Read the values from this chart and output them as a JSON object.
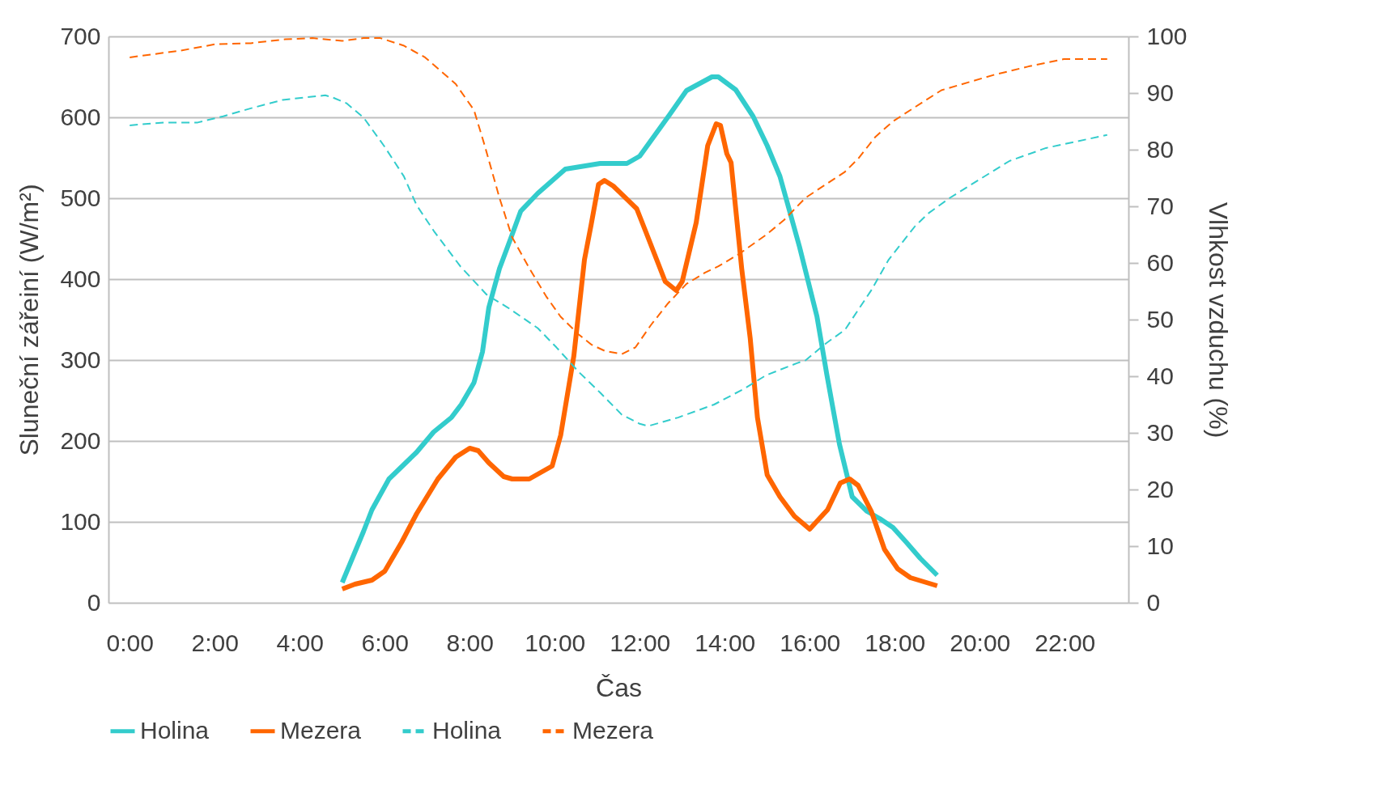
{
  "chart_data": {
    "type": "line",
    "xlabel": "Čas",
    "ylabel": "Sluneční zářeiní (W/m²)",
    "y2label": "Vlhkost vzduchu (%)",
    "xlim": [
      -0.5,
      23.5
    ],
    "xticks": [
      {
        "value": 0,
        "label": "0:00"
      },
      {
        "value": 2,
        "label": "2:00"
      },
      {
        "value": 4,
        "label": "4:00"
      },
      {
        "value": 6,
        "label": "6:00"
      },
      {
        "value": 8,
        "label": "8:00"
      },
      {
        "value": 10,
        "label": "10:00"
      },
      {
        "value": 12,
        "label": "12:00"
      },
      {
        "value": 14,
        "label": "14:00"
      },
      {
        "value": 16,
        "label": "16:00"
      },
      {
        "value": 18,
        "label": "18:00"
      },
      {
        "value": 20,
        "label": "20:00"
      },
      {
        "value": 22,
        "label": "22:00"
      }
    ],
    "ylim": [
      0,
      700
    ],
    "yticks": [
      0,
      100,
      200,
      300,
      400,
      500,
      600,
      700
    ],
    "y2lim": [
      0,
      100
    ],
    "y2ticks": [
      0,
      10,
      20,
      30,
      40,
      50,
      60,
      70,
      80,
      90,
      100
    ],
    "grid": "y",
    "legend": "bottom",
    "marker": "none",
    "series": [
      {
        "name": "Holina",
        "color": "#33cccc",
        "line_style": "solid",
        "axis": "y",
        "x": [
          5.0,
          5.5,
          5.7,
          6.1,
          6.75,
          7.15,
          7.57,
          7.8,
          8.1,
          8.3,
          8.45,
          8.7,
          8.97,
          9.2,
          9.6,
          10.25,
          11.07,
          11.7,
          12.0,
          12.7,
          13.1,
          13.7,
          13.85,
          14.26,
          14.67,
          15.0,
          15.3,
          15.76,
          16.17,
          16.4,
          16.7,
          17.0,
          17.35,
          17.65,
          17.96,
          18.27,
          18.6,
          19.0
        ],
        "values": [
          25,
          88,
          115,
          153,
          186,
          211,
          229,
          245,
          272,
          310,
          365,
          413,
          451,
          484,
          506,
          536,
          543,
          543,
          552,
          603,
          633,
          650,
          650,
          634,
          601,
          565,
          527,
          440,
          354,
          283,
          196,
          131,
          113,
          104,
          93,
          75,
          55,
          34
        ]
      },
      {
        "name": "Mezera",
        "color": "#ff6600",
        "line_style": "solid",
        "axis": "y",
        "x": [
          5.0,
          5.3,
          5.7,
          6.0,
          6.4,
          6.75,
          7.25,
          7.67,
          8.0,
          8.2,
          8.45,
          8.8,
          9.0,
          9.4,
          9.94,
          10.14,
          10.45,
          10.7,
          10.86,
          11.03,
          11.17,
          11.38,
          11.93,
          12.14,
          12.4,
          12.6,
          12.86,
          13.0,
          13.33,
          13.6,
          13.8,
          13.9,
          14.05,
          14.15,
          14.4,
          14.6,
          14.77,
          15.0,
          15.3,
          15.64,
          16.0,
          16.42,
          16.72,
          16.94,
          17.14,
          17.45,
          17.76,
          18.07,
          18.37,
          19.0
        ],
        "values": [
          17,
          23,
          28,
          39,
          75,
          110,
          153,
          180,
          191,
          188,
          173,
          156,
          153,
          153,
          169,
          207,
          305,
          424,
          468,
          517,
          522,
          515,
          487,
          459,
          424,
          397,
          386,
          397,
          470,
          565,
          592,
          590,
          555,
          544,
          413,
          327,
          229,
          158,
          131,
          107,
          91,
          115,
          148,
          153,
          145,
          113,
          66,
          42,
          31,
          21
        ]
      },
      {
        "name": "Holina",
        "color": "#33cccc",
        "line_style": "dashed",
        "axis": "y2",
        "x": [
          0.0,
          0.8,
          1.6,
          2.2,
          2.85,
          3.6,
          4.6,
          4.75,
          5.1,
          5.5,
          6.0,
          6.45,
          6.75,
          7.16,
          7.78,
          8.4,
          8.9,
          9.6,
          10.04,
          10.56,
          11.07,
          11.58,
          12.0,
          12.2,
          12.9,
          13.75,
          14.46,
          14.98,
          15.7,
          15.9,
          16.4,
          16.83,
          17.45,
          17.86,
          18.48,
          18.8,
          19.3,
          19.9,
          20.7,
          21.56,
          23.0
        ],
        "values": [
          84.3,
          84.8,
          84.8,
          85.9,
          87.3,
          88.8,
          89.6,
          89.3,
          88.2,
          85.7,
          80.5,
          75.3,
          70.2,
          65.6,
          59.4,
          54.4,
          52.1,
          48.5,
          45.1,
          40.8,
          37.1,
          33.2,
          31.6,
          31.2,
          32.7,
          35.0,
          37.8,
          40.2,
          42.3,
          42.8,
          45.9,
          48.2,
          55.2,
          60.6,
          66.5,
          68.8,
          71.5,
          74.3,
          78.0,
          80.3,
          82.6
        ]
      },
      {
        "name": "Mezera",
        "color": "#ff6600",
        "line_style": "dashed",
        "axis": "y2",
        "x": [
          0.0,
          1.2,
          2.0,
          2.85,
          3.66,
          4.3,
          5.0,
          5.5,
          5.9,
          6.44,
          6.95,
          7.67,
          8.1,
          8.35,
          8.7,
          9.0,
          9.4,
          9.8,
          10.14,
          10.56,
          10.86,
          11.17,
          11.58,
          11.9,
          12.26,
          12.67,
          13.1,
          13.54,
          13.85,
          14.36,
          14.98,
          15.4,
          15.9,
          16.83,
          17.14,
          17.55,
          17.96,
          18.68,
          19.1,
          20.33,
          21.15,
          21.98,
          23.0
        ],
        "values": [
          96.3,
          97.5,
          98.6,
          98.8,
          99.5,
          99.7,
          99.2,
          99.7,
          99.7,
          98.4,
          96.3,
          91.6,
          87.0,
          80.8,
          71.5,
          64.5,
          59.1,
          54.1,
          50.5,
          47.4,
          45.6,
          44.5,
          43.9,
          45.1,
          49.0,
          52.9,
          56.3,
          58.3,
          59.4,
          61.7,
          65.0,
          67.6,
          71.5,
          76.1,
          78.4,
          82.3,
          85.0,
          88.5,
          90.5,
          93.2,
          94.7,
          96.0,
          96.0
        ]
      }
    ]
  }
}
